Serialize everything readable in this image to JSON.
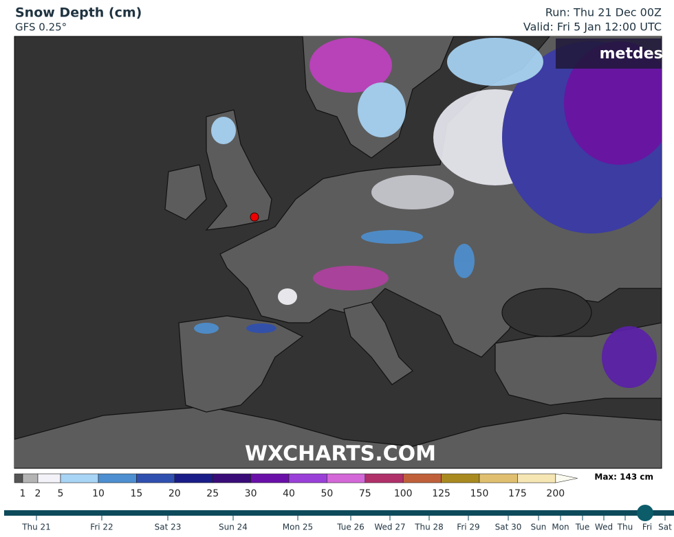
{
  "header": {
    "title": "Snow Depth (cm)",
    "model": "GFS 0.25°",
    "run": "Run: Thu 21 Dec 00Z",
    "valid": "Valid: Fri 5 Jan 12:00 UTC"
  },
  "map": {
    "logo": "metdesk",
    "watermark": "WXCHARTS.COM"
  },
  "legend": {
    "levels": [
      1,
      2,
      5,
      10,
      15,
      20,
      25,
      30,
      40,
      50,
      75,
      100,
      125,
      150,
      175,
      200
    ],
    "colors": [
      "#555555",
      "#b4b4b4",
      "#f2f2f8",
      "#a8d4f5",
      "#4d8fd0",
      "#3050b0",
      "#1a1c88",
      "#3a0c78",
      "#6a10a8",
      "#9a40d8",
      "#d468d8",
      "#b0306a",
      "#c0603a",
      "#a88a20",
      "#e0c070",
      "#f6e6b4",
      "#fbfbf0"
    ],
    "max_label": "Max: 143 cm"
  },
  "timeline": {
    "days": [
      "Thu 21",
      "Fri 22",
      "Sat 23",
      "Sun 24",
      "Mon 25",
      "Tue 26",
      "Wed 27",
      "Thu 28",
      "Fri 29",
      "Sat 30",
      "Sun",
      "Mon",
      "Tue",
      "Wed",
      "Thu",
      "Fri",
      "Sat"
    ]
  }
}
